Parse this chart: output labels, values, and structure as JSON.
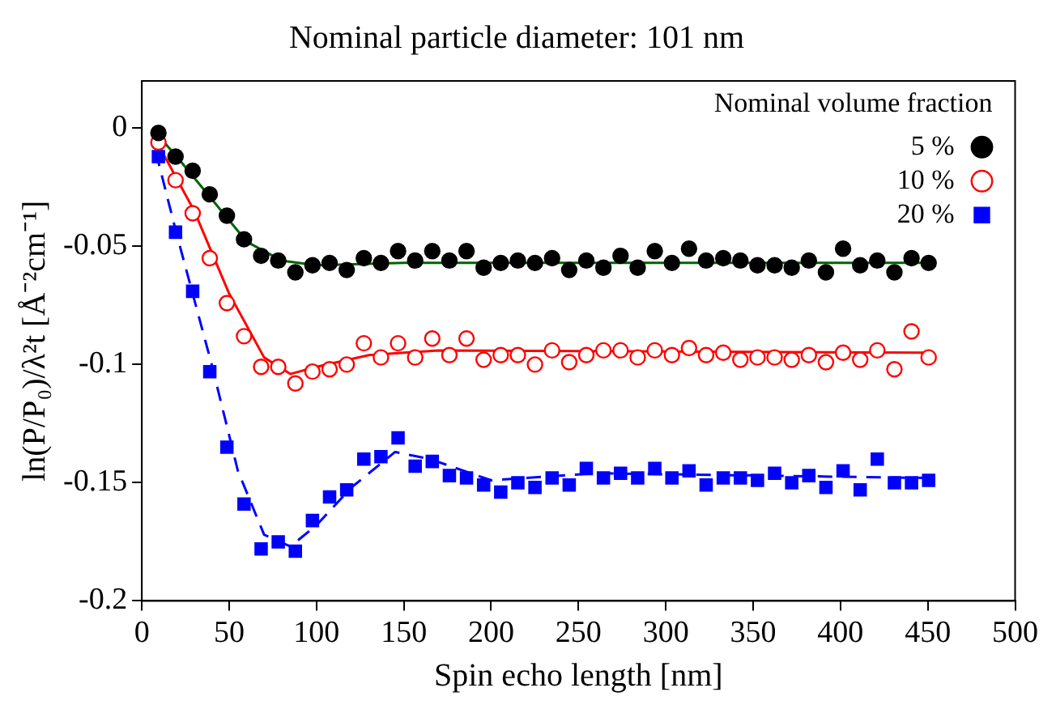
{
  "chart_data": {
    "type": "scatter",
    "title": "Nominal particle diameter: 101 nm",
    "xlabel": "Spin echo length [nm]",
    "ylabel": "ln(P/P₀)/λ²t [Å⁻²cm⁻¹]",
    "legend_title": "Nominal volume fraction",
    "legend": "top right",
    "grid": false,
    "xlim": [
      0,
      500
    ],
    "xticks": [
      0,
      50,
      100,
      150,
      200,
      250,
      300,
      350,
      400,
      450,
      500
    ],
    "ylim": [
      -0.2,
      0.02
    ],
    "yticks": [
      -0.2,
      -0.15,
      -0.1,
      -0.05,
      0
    ],
    "x": [
      9.5,
      19.3,
      29.1,
      38.9,
      48.7,
      58.5,
      68.3,
      78.1,
      87.9,
      97.7,
      107.5,
      117.3,
      127.1,
      136.9,
      146.7,
      156.5,
      166.3,
      176.1,
      185.9,
      195.7,
      205.5,
      215.3,
      225.1,
      234.9,
      244.7,
      254.5,
      264.3,
      274.1,
      283.9,
      293.7,
      303.5,
      313.3,
      323.1,
      332.9,
      342.7,
      352.5,
      362.3,
      372.1,
      381.9,
      391.7,
      401.5,
      411.3,
      421.1,
      430.9,
      440.7,
      450.5
    ],
    "series": [
      {
        "name": "5 %",
        "color": "#000000",
        "marker": "circle",
        "values": [
          -0.002,
          -0.012,
          -0.018,
          -0.028,
          -0.037,
          -0.047,
          -0.054,
          -0.056,
          -0.061,
          -0.058,
          -0.057,
          -0.06,
          -0.055,
          -0.057,
          -0.052,
          -0.056,
          -0.052,
          -0.056,
          -0.052,
          -0.059,
          -0.057,
          -0.056,
          -0.057,
          -0.055,
          -0.06,
          -0.056,
          -0.059,
          -0.054,
          -0.059,
          -0.052,
          -0.057,
          -0.051,
          -0.056,
          -0.055,
          -0.056,
          -0.058,
          -0.058,
          -0.059,
          -0.056,
          -0.061,
          -0.051,
          -0.058,
          -0.056,
          -0.061,
          -0.055,
          -0.057
        ]
      },
      {
        "name": "10 %",
        "color": "#ff0000",
        "marker": "circle_open",
        "values": [
          -0.006,
          -0.022,
          -0.036,
          -0.055,
          -0.074,
          -0.088,
          -0.101,
          -0.101,
          -0.108,
          -0.103,
          -0.102,
          -0.1,
          -0.091,
          -0.097,
          -0.091,
          -0.097,
          -0.089,
          -0.096,
          -0.089,
          -0.098,
          -0.096,
          -0.096,
          -0.1,
          -0.094,
          -0.099,
          -0.096,
          -0.094,
          -0.094,
          -0.097,
          -0.094,
          -0.096,
          -0.093,
          -0.096,
          -0.095,
          -0.098,
          -0.097,
          -0.097,
          -0.098,
          -0.096,
          -0.099,
          -0.095,
          -0.098,
          -0.094,
          -0.102,
          -0.086,
          -0.097
        ]
      },
      {
        "name": "20 %",
        "color": "#0000ff",
        "marker": "square",
        "values": [
          -0.012,
          -0.044,
          -0.069,
          -0.103,
          -0.135,
          -0.159,
          -0.178,
          -0.175,
          -0.179,
          -0.166,
          -0.156,
          -0.153,
          -0.14,
          -0.139,
          -0.131,
          -0.143,
          -0.141,
          -0.147,
          -0.148,
          -0.151,
          -0.154,
          -0.15,
          -0.152,
          -0.148,
          -0.151,
          -0.144,
          -0.148,
          -0.146,
          -0.148,
          -0.144,
          -0.148,
          -0.145,
          -0.151,
          -0.148,
          -0.148,
          -0.149,
          -0.146,
          -0.15,
          -0.147,
          -0.152,
          -0.145,
          -0.153,
          -0.14,
          -0.15,
          -0.15,
          -0.149
        ]
      },
      {
        "type": "line",
        "color": "#006400",
        "line_style": "solid",
        "x": [
          8,
          20,
          40,
          60,
          80,
          100,
          150,
          450
        ],
        "values": [
          -0.002,
          -0.012,
          -0.03,
          -0.048,
          -0.056,
          -0.058,
          -0.057,
          -0.057
        ]
      },
      {
        "type": "line",
        "color": "#ff0000",
        "line_style": "solid",
        "x": [
          8,
          30,
          50,
          70,
          85,
          100,
          130,
          170,
          450
        ],
        "values": [
          -0.005,
          -0.035,
          -0.07,
          -0.097,
          -0.104,
          -0.101,
          -0.096,
          -0.094,
          -0.095
        ]
      },
      {
        "type": "line",
        "color": "#0000ff",
        "line_style": "dashed",
        "x": [
          8,
          20,
          40,
          55,
          70,
          85,
          100,
          120,
          145,
          165,
          200,
          260,
          450
        ],
        "values": [
          -0.01,
          -0.045,
          -0.1,
          -0.145,
          -0.172,
          -0.177,
          -0.168,
          -0.152,
          -0.137,
          -0.14,
          -0.149,
          -0.146,
          -0.148
        ]
      }
    ]
  }
}
